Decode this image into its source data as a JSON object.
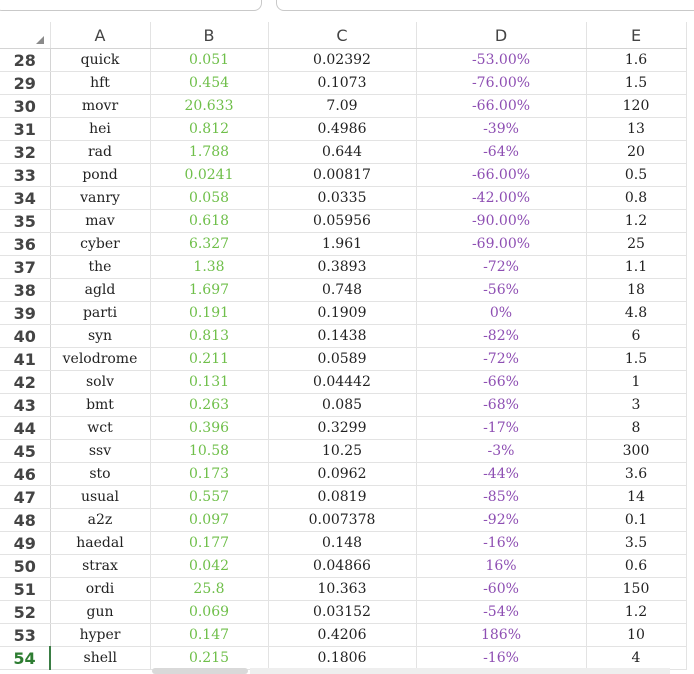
{
  "columns": [
    "A",
    "B",
    "C",
    "D",
    "E"
  ],
  "active_row": "54",
  "rows": [
    {
      "n": "28",
      "a": "quick",
      "b": "0.051",
      "c": "0.02392",
      "d": "-53.00%",
      "e": "1.6"
    },
    {
      "n": "29",
      "a": "hft",
      "b": "0.454",
      "c": "0.1073",
      "d": "-76.00%",
      "e": "1.5"
    },
    {
      "n": "30",
      "a": "movr",
      "b": "20.633",
      "c": "7.09",
      "d": "-66.00%",
      "e": "120"
    },
    {
      "n": "31",
      "a": "hei",
      "b": "0.812",
      "c": "0.4986",
      "d": "-39%",
      "e": "13"
    },
    {
      "n": "32",
      "a": "rad",
      "b": "1.788",
      "c": "0.644",
      "d": "-64%",
      "e": "20"
    },
    {
      "n": "33",
      "a": "pond",
      "b": "0.0241",
      "c": "0.00817",
      "d": "-66.00%",
      "e": "0.5"
    },
    {
      "n": "34",
      "a": "vanry",
      "b": "0.058",
      "c": "0.0335",
      "d": "-42.00%",
      "e": "0.8"
    },
    {
      "n": "35",
      "a": "mav",
      "b": "0.618",
      "c": "0.05956",
      "d": "-90.00%",
      "e": "1.2"
    },
    {
      "n": "36",
      "a": "cyber",
      "b": "6.327",
      "c": "1.961",
      "d": "-69.00%",
      "e": "25"
    },
    {
      "n": "37",
      "a": "the",
      "b": "1.38",
      "c": "0.3893",
      "d": "-72%",
      "e": "1.1"
    },
    {
      "n": "38",
      "a": "agld",
      "b": "1.697",
      "c": "0.748",
      "d": "-56%",
      "e": "18"
    },
    {
      "n": "39",
      "a": "parti",
      "b": "0.191",
      "c": "0.1909",
      "d": "0%",
      "e": "4.8"
    },
    {
      "n": "40",
      "a": "syn",
      "b": "0.813",
      "c": "0.1438",
      "d": "-82%",
      "e": "6"
    },
    {
      "n": "41",
      "a": "velodrome",
      "b": "0.211",
      "c": "0.0589",
      "d": "-72%",
      "e": "1.5"
    },
    {
      "n": "42",
      "a": "solv",
      "b": "0.131",
      "c": "0.04442",
      "d": "-66%",
      "e": "1"
    },
    {
      "n": "43",
      "a": "bmt",
      "b": "0.263",
      "c": "0.085",
      "d": "-68%",
      "e": "3"
    },
    {
      "n": "44",
      "a": "wct",
      "b": "0.396",
      "c": "0.3299",
      "d": "-17%",
      "e": "8"
    },
    {
      "n": "45",
      "a": "ssv",
      "b": "10.58",
      "c": "10.25",
      "d": "-3%",
      "e": "300"
    },
    {
      "n": "46",
      "a": "sto",
      "b": "0.173",
      "c": "0.0962",
      "d": "-44%",
      "e": "3.6"
    },
    {
      "n": "47",
      "a": "usual",
      "b": "0.557",
      "c": "0.0819",
      "d": "-85%",
      "e": "14"
    },
    {
      "n": "48",
      "a": "a2z",
      "b": "0.097",
      "c": "0.007378",
      "d": "-92%",
      "e": "0.1"
    },
    {
      "n": "49",
      "a": "haedal",
      "b": "0.177",
      "c": "0.148",
      "d": "-16%",
      "e": "3.5"
    },
    {
      "n": "50",
      "a": "strax",
      "b": "0.042",
      "c": "0.04866",
      "d": "16%",
      "e": "0.6"
    },
    {
      "n": "51",
      "a": "ordi",
      "b": "25.8",
      "c": "10.363",
      "d": "-60%",
      "e": "150"
    },
    {
      "n": "52",
      "a": "gun",
      "b": "0.069",
      "c": "0.03152",
      "d": "-54%",
      "e": "1.2"
    },
    {
      "n": "53",
      "a": "hyper",
      "b": "0.147",
      "c": "0.4206",
      "d": "186%",
      "e": "10"
    },
    {
      "n": "54",
      "a": "shell",
      "b": "0.215",
      "c": "0.1806",
      "d": "-16%",
      "e": "4"
    }
  ]
}
